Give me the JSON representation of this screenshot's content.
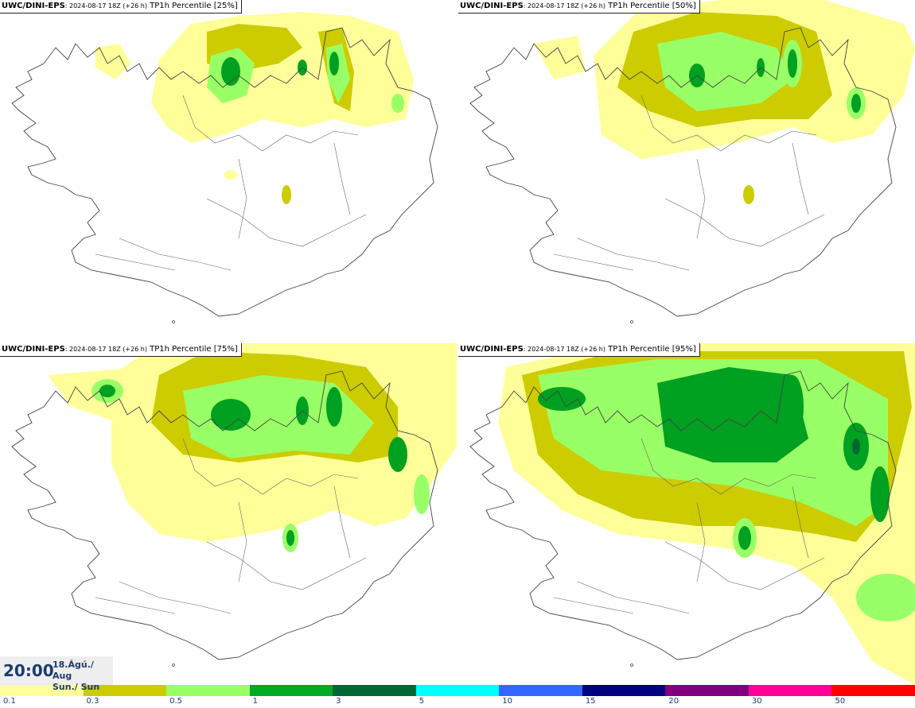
{
  "panels": [
    {
      "source": "UWC/DINI-EPS",
      "run": ": 2024-08-17 18Z (+26 h)",
      "title": " TP1h Percentile [25%]"
    },
    {
      "source": "UWC/DINI-EPS",
      "run": ": 2024-08-17 18Z (+26 h)",
      "title": " TP1h Percentile [50%]"
    },
    {
      "source": "UWC/DINI-EPS",
      "run": ": 2024-08-17 18Z (+26 h)",
      "title": " TP1h Percentile [75%]"
    },
    {
      "source": "UWC/DINI-EPS",
      "run": ": 2024-08-17 18Z (+26 h)",
      "title": " TP1h Percentile [95%]"
    }
  ],
  "valid_time": {
    "time": "20:00",
    "date_line1": "18.Ágú./ Aug",
    "date_line2": "Sun./ Sun"
  },
  "colors": {
    "c01": "#ffff99",
    "c03": "#cccc00",
    "c05": "#99ff66",
    "c1": "#00a020",
    "c3": "#006633",
    "coast": "#444444"
  },
  "legend": {
    "labels": [
      "0.1",
      "0.3",
      "0.5",
      "1",
      "3",
      "5",
      "10",
      "15",
      "20",
      "30",
      "50"
    ],
    "colors": [
      "#ffff99",
      "#cccc00",
      "#99ff66",
      "#00aa22",
      "#006633",
      "#00ffff",
      "#3366ff",
      "#000080",
      "#800080",
      "#ff0099",
      "#ff0000"
    ]
  }
}
